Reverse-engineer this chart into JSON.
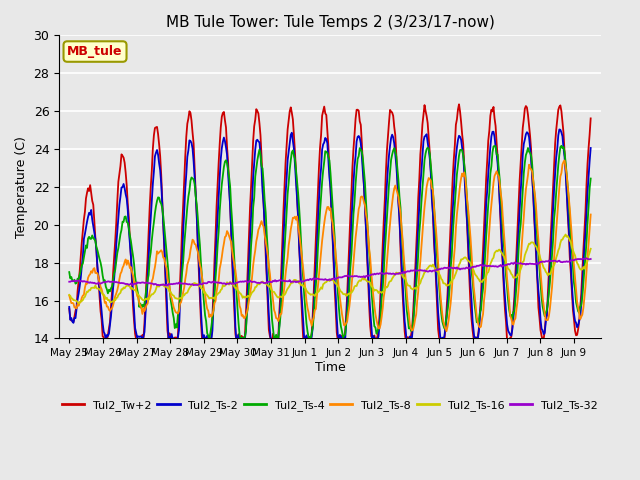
{
  "title": "MB Tule Tower: Tule Temps 2 (3/23/17-now)",
  "xlabel": "Time",
  "ylabel": "Temperature (C)",
  "ylim": [
    14,
    30
  ],
  "yticks": [
    14,
    16,
    18,
    20,
    22,
    24,
    26,
    28,
    30
  ],
  "background_color": "#e8e8e8",
  "plot_bg_color": "#e8e8e8",
  "grid_color": "white",
  "legend_labels": [
    "Tul2_Tw+2",
    "Tul2_Ts-2",
    "Tul2_Ts-4",
    "Tul2_Ts-8",
    "Tul2_Ts-16",
    "Tul2_Ts-32"
  ],
  "line_colors": [
    "#cc0000",
    "#0000cc",
    "#00aa00",
    "#ff8800",
    "#cccc00",
    "#9900cc"
  ],
  "watermark_text": "MB_tule",
  "watermark_color": "#cc0000",
  "watermark_bg": "#ffffcc",
  "watermark_border": "#999900",
  "xtick_labels": [
    "May 25",
    "May 26",
    "May 27",
    "May 28",
    "May 29",
    "May 30",
    "May 31",
    "Jun 1",
    "Jun 2",
    "Jun 3",
    "Jun 4",
    "Jun 5",
    "Jun 6",
    "Jun 7",
    "Jun 8",
    "Jun 9"
  ],
  "xtick_positions": [
    0,
    1,
    2,
    3,
    4,
    5,
    6,
    7,
    8,
    9,
    10,
    11,
    12,
    13,
    14,
    15
  ]
}
